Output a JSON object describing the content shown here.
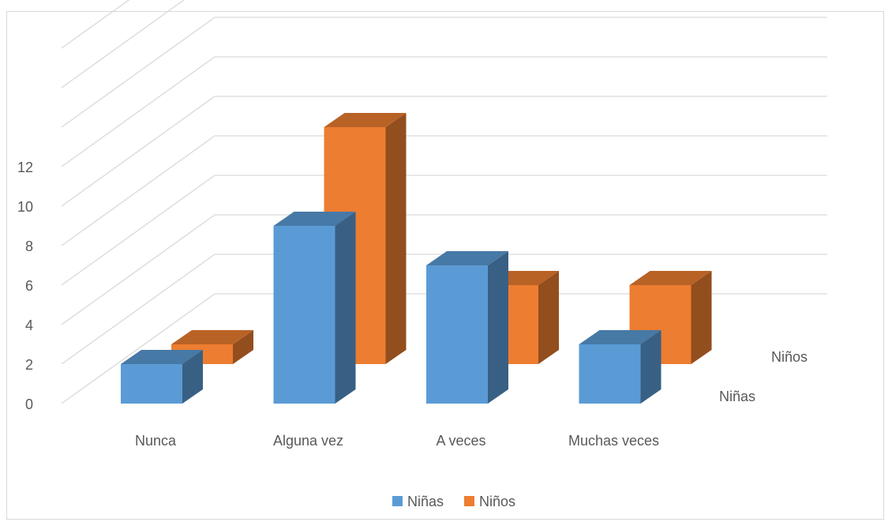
{
  "chart_data": {
    "type": "bar",
    "style": "3d-column",
    "title": "",
    "categories": [
      "Nunca",
      "Alguna vez",
      "A veces",
      "Muchas veces"
    ],
    "series": [
      {
        "name": "Niñas",
        "values": [
          2,
          9,
          7,
          3
        ],
        "color": "#5b9bd5"
      },
      {
        "name": "Niños",
        "values": [
          1,
          12,
          4,
          4
        ],
        "color": "#ed7d31"
      }
    ],
    "y_ticks": [
      "0",
      "2",
      "4",
      "6",
      "8",
      "10",
      "12"
    ],
    "ylim": [
      0,
      18
    ],
    "grid": true,
    "legend_position": "bottom",
    "depth_axis_labels": [
      "Niñas",
      "Niños"
    ]
  }
}
